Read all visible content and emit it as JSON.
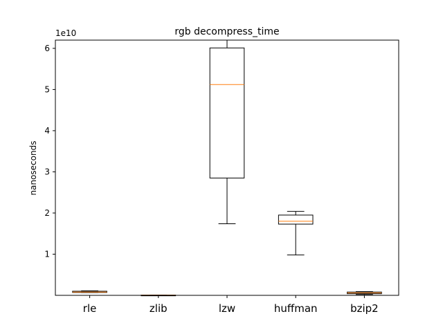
{
  "chart_data": {
    "type": "boxplot",
    "title": "rgb decompress_time",
    "xlabel": "",
    "ylabel": "nanoseconds",
    "y_offset_label": "1e10",
    "ylim": [
      0,
      6.2
    ],
    "yticks": [
      1,
      2,
      3,
      4,
      5,
      6
    ],
    "ytick_labels": [
      "1",
      "2",
      "3",
      "4",
      "5",
      "6"
    ],
    "grid": false,
    "median_color": "#ff7f0e",
    "box_color": "#000000",
    "categories": [
      "rle",
      "zlib",
      "lzw",
      "huffman",
      "bzip2"
    ],
    "boxes": [
      {
        "name": "rle",
        "whisker_low": 0.07,
        "q1": 0.07,
        "median": 0.08,
        "q3": 0.1,
        "whisker_high": 0.11
      },
      {
        "name": "zlib",
        "whisker_low": 0.003,
        "q1": 0.004,
        "median": 0.005,
        "q3": 0.006,
        "whisker_high": 0.007
      },
      {
        "name": "lzw",
        "whisker_low": 1.74,
        "q1": 2.85,
        "median": 5.12,
        "q3": 6.01,
        "whisker_high": 6.2
      },
      {
        "name": "huffman",
        "whisker_low": 0.98,
        "q1": 1.73,
        "median": 1.8,
        "q3": 1.95,
        "whisker_high": 2.04
      },
      {
        "name": "bzip2",
        "whisker_low": 0.02,
        "q1": 0.04,
        "median": 0.06,
        "q3": 0.08,
        "whisker_high": 0.09
      }
    ]
  }
}
